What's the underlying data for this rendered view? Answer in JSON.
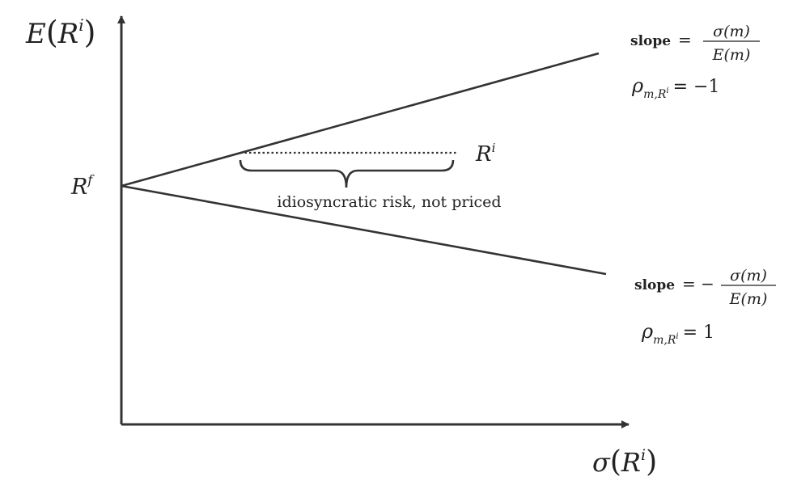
{
  "axes": {
    "y_label": {
      "fn": "E",
      "open": "(",
      "var": "R",
      "sup": "i",
      "close": ")"
    },
    "x_label": {
      "fn": "σ",
      "open": "(",
      "var": "R",
      "sup": "i",
      "close": ")"
    }
  },
  "risk_free": {
    "base": "R",
    "sup": "f"
  },
  "asset": {
    "base": "R",
    "sup": "i"
  },
  "brace_label": "idiosyncratic risk, not priced",
  "upper_line": {
    "slope_word": "slope",
    "eq": "=",
    "numerator": "σ(m)",
    "denominator": "E(m)",
    "rho_symbol": "ρ",
    "rho_sub": "m,R",
    "rho_sub_sup": "i",
    "rho_value": "= −1"
  },
  "lower_line": {
    "slope_word": "slope",
    "eq": "= −",
    "numerator": "σ(m)",
    "denominator": "E(m)",
    "rho_symbol": "ρ",
    "rho_sub": "m,R",
    "rho_sub_sup": "i",
    "rho_value": "= 1"
  },
  "colors": {
    "ink": "#333333",
    "text": "#222222",
    "background": "#ffffff"
  }
}
